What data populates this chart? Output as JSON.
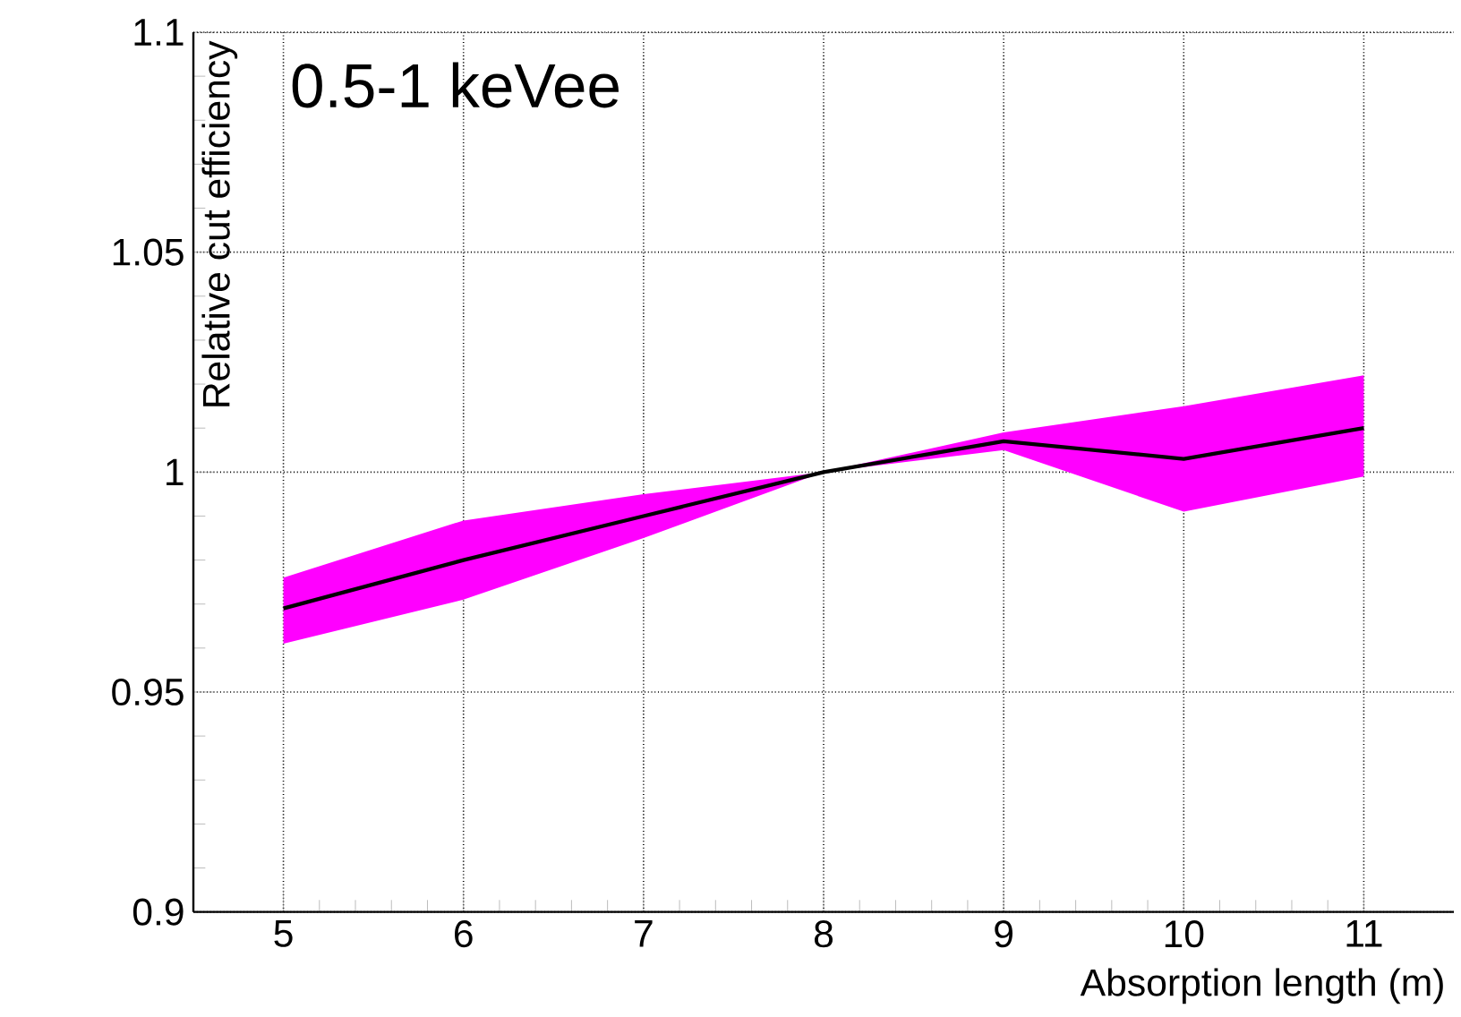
{
  "chart_data": {
    "type": "line",
    "xlabel": "Absorption length (m)",
    "ylabel": "Relative cut efficiency",
    "annotations": [
      "0.5-1 keVee"
    ],
    "x": [
      5,
      6,
      7,
      8,
      9,
      10,
      11
    ],
    "series": [
      {
        "color": "#000000",
        "values": [
          0.969,
          0.98,
          0.99,
          1.0,
          1.007,
          1.003,
          1.01
        ],
        "lower": [
          0.961,
          0.971,
          0.985,
          1.0,
          1.005,
          0.991,
          0.999
        ],
        "upper": [
          0.976,
          0.989,
          0.995,
          1.0,
          1.009,
          1.015,
          1.022
        ]
      }
    ],
    "xlim": [
      4.5,
      11.5
    ],
    "ylim": [
      0.9,
      1.1
    ],
    "xticks": [
      5,
      6,
      7,
      8,
      9,
      10,
      11
    ],
    "yticks": [
      0.9,
      0.95,
      1,
      1.05,
      1.1
    ],
    "grid": true,
    "marker": "none",
    "line_style": "solid"
  }
}
